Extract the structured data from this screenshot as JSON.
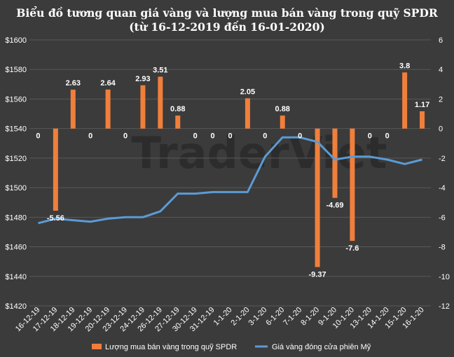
{
  "chart_data": {
    "type": "bar+line",
    "title": "Biểu đồ tương quan giá vàng và lượng mua bán vàng trong quỹ SPDR",
    "subtitle": "(từ 16-12-2019 đến 16-01-2020)",
    "watermark": "TraderViet",
    "categories": [
      "16-12-19",
      "17-12-19",
      "18-12-19",
      "19-12-19",
      "20-12-19",
      "23-12-19",
      "24-12-19",
      "26-12-19",
      "27-12-19",
      "30-12-19",
      "31-12-19",
      "1-1-20",
      "2-1-20",
      "3-1-20",
      "6-1-20",
      "7-1-20",
      "8-1-20",
      "9-1-20",
      "10-1-20",
      "13-1-20",
      "14-1-20",
      "15-1-20",
      "16-1-20"
    ],
    "series": [
      {
        "name": "Lượng mua bán vàng trong quỹ  SPDR",
        "type": "bar",
        "axis": "right",
        "color": "#f07f3c",
        "values": [
          0,
          -5.56,
          2.63,
          0,
          2.64,
          0,
          2.93,
          3.51,
          0.88,
          0,
          0,
          0,
          2.05,
          0,
          0.88,
          0,
          -9.37,
          -4.69,
          -7.6,
          0,
          0,
          3.8,
          1.17
        ],
        "labels": [
          "0",
          "-5.56",
          "2.63",
          "0",
          "2.64",
          "0",
          "2.93",
          "3.51",
          "0.88",
          "0",
          "0",
          "0",
          "2.05",
          "0",
          "0.88",
          "0",
          "-9.37",
          "-4.69",
          "-7.6",
          "0",
          "0",
          "3.8",
          "1.17"
        ]
      },
      {
        "name": "Giá vàng đóng cửa phiên Mỹ",
        "type": "line",
        "axis": "left",
        "color": "#5b9bd5",
        "values": [
          1476,
          1479,
          1478,
          1477,
          1479,
          1480,
          1480,
          1484,
          1496,
          1496,
          1497,
          1497,
          1497,
          1521,
          1534,
          1534,
          1531,
          1519,
          1521,
          1521,
          1519,
          1516,
          1519
        ]
      }
    ],
    "y_left": {
      "min": 1420,
      "max": 1600,
      "step": 20,
      "ticks": [
        "$1420",
        "$1440",
        "$1460",
        "$1480",
        "$1500",
        "$1520",
        "$1540",
        "$1560",
        "$1580",
        "$1600"
      ]
    },
    "y_right": {
      "min": -12,
      "max": 6,
      "step": 2,
      "ticks": [
        "-12",
        "-10",
        "-8",
        "-6",
        "-4",
        "-2",
        "0",
        "2",
        "4",
        "6"
      ]
    },
    "legend": {
      "position": "bottom"
    }
  }
}
